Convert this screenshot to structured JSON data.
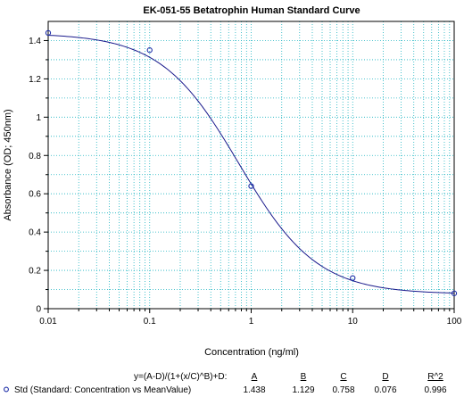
{
  "chart_data": {
    "type": "scatter",
    "title": "EK-051-55 Betatrophin Human Standard Curve",
    "xlabel": "Concentration (ng/ml)",
    "ylabel": "Absorbance (OD; 450nm)",
    "x_scale": "log",
    "xlim": [
      0.01,
      100
    ],
    "ylim": [
      0,
      1.5
    ],
    "x_ticks": [
      "0.01",
      "0.1",
      "1",
      "10",
      "100"
    ],
    "y_ticks": [
      "0",
      "0.2",
      "0.4",
      "0.6",
      "0.8",
      "1",
      "1.2",
      "1.4"
    ],
    "grid": true,
    "series": [
      {
        "name": "Std (Standard: Concentration vs MeanValue)",
        "x": [
          0.01,
          0.1,
          1,
          10,
          100
        ],
        "y": [
          1.44,
          1.35,
          0.64,
          0.16,
          0.08
        ]
      }
    ],
    "fit": {
      "equation": "y=(A-D)/(1+(x/C)^B)+D:",
      "params": [
        {
          "name": "A",
          "value": "1.438"
        },
        {
          "name": "B",
          "value": "1.129"
        },
        {
          "name": "C",
          "value": "0.758"
        },
        {
          "name": "D",
          "value": "0.076"
        },
        {
          "name": "R^2",
          "value": "0.996"
        }
      ]
    },
    "colors": {
      "points": "#1f2fa8",
      "curve": "#1a1a8c",
      "grid": "#1ab3c0",
      "axis": "#000000"
    }
  }
}
